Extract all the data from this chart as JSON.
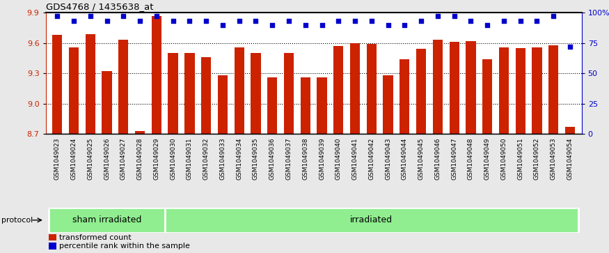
{
  "title": "GDS4768 / 1435638_at",
  "samples": [
    "GSM1049023",
    "GSM1049024",
    "GSM1049025",
    "GSM1049026",
    "GSM1049027",
    "GSM1049028",
    "GSM1049029",
    "GSM1049030",
    "GSM1049031",
    "GSM1049032",
    "GSM1049033",
    "GSM1049034",
    "GSM1049035",
    "GSM1049036",
    "GSM1049037",
    "GSM1049038",
    "GSM1049039",
    "GSM1049040",
    "GSM1049041",
    "GSM1049042",
    "GSM1049043",
    "GSM1049044",
    "GSM1049045",
    "GSM1049046",
    "GSM1049047",
    "GSM1049048",
    "GSM1049049",
    "GSM1049050",
    "GSM1049051",
    "GSM1049052",
    "GSM1049053",
    "GSM1049054"
  ],
  "bar_values": [
    9.68,
    9.56,
    9.69,
    9.32,
    9.63,
    8.73,
    9.87,
    9.5,
    9.5,
    9.46,
    9.28,
    9.56,
    9.5,
    9.26,
    9.5,
    9.26,
    9.26,
    9.57,
    9.6,
    9.59,
    9.28,
    9.44,
    9.54,
    9.63,
    9.61,
    9.62,
    9.44,
    9.56,
    9.55,
    9.56,
    9.58,
    8.77
  ],
  "percentile_values": [
    97,
    93,
    97,
    93,
    97,
    93,
    97,
    93,
    93,
    93,
    90,
    93,
    93,
    90,
    93,
    90,
    90,
    93,
    93,
    93,
    90,
    90,
    93,
    97,
    97,
    93,
    90,
    93,
    93,
    93,
    97,
    72
  ],
  "sham_count": 7,
  "irradiated_count": 25,
  "ymin": 8.7,
  "ymax": 9.9,
  "yticks_left": [
    8.7,
    9.0,
    9.3,
    9.6,
    9.9
  ],
  "yticks_right": [
    0,
    25,
    50,
    75,
    100
  ],
  "ytick_labels_right": [
    "0",
    "25",
    "50",
    "75",
    "100%"
  ],
  "bar_color": "#CC2200",
  "dot_color": "#0000CC",
  "sham_label": "sham irradiated",
  "irradiated_label": "irradiated",
  "protocol_label": "protocol",
  "legend_bar_label": "transformed count",
  "legend_dot_label": "percentile rank within the sample",
  "bg_color": "#e8e8e8",
  "plot_bg": "#ffffff",
  "group_bg": "#90EE90",
  "tick_label_bg": "#d0d0d0"
}
